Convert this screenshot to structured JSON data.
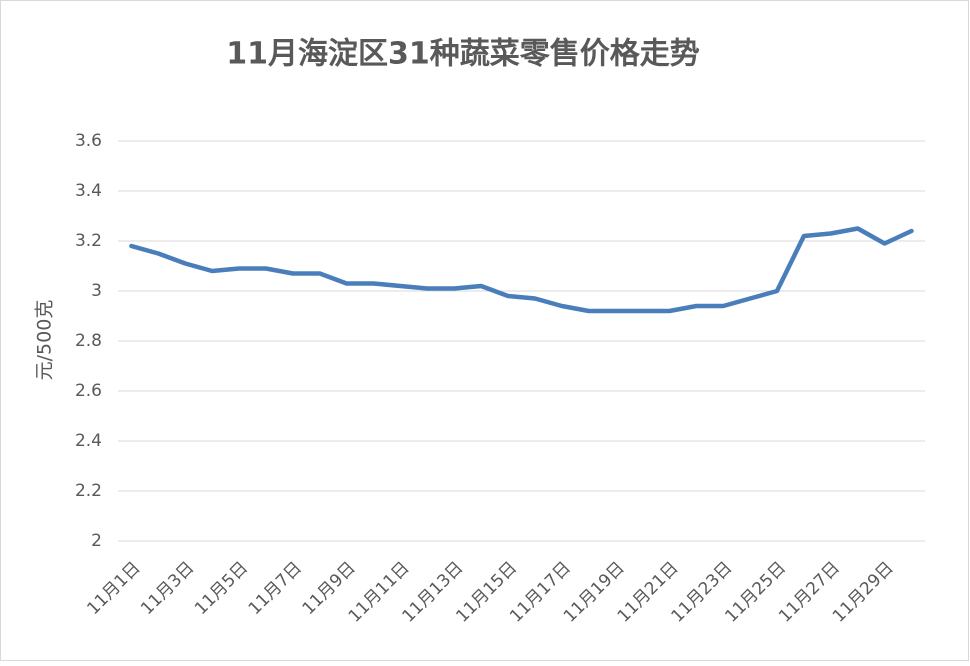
{
  "chart_data": {
    "type": "line",
    "title": "11月海淀区31种蔬菜零售价格走势",
    "y_label": "元/500克",
    "categories": [
      "11月1日",
      null,
      "11月3日",
      null,
      "11月5日",
      null,
      "11月7日",
      null,
      "11月9日",
      null,
      "11月11日",
      null,
      "11月13日",
      null,
      "11月15日",
      null,
      "11月17日",
      null,
      "11月19日",
      null,
      "11月21日",
      null,
      "11月23日",
      null,
      "11月25日",
      null,
      "11月27日",
      null,
      "11月29日",
      null
    ],
    "values": [
      3.18,
      3.15,
      3.11,
      3.08,
      3.09,
      3.09,
      3.07,
      3.07,
      3.03,
      3.03,
      3.02,
      3.01,
      3.01,
      3.02,
      2.98,
      2.97,
      2.94,
      2.92,
      2.92,
      2.92,
      2.92,
      2.94,
      2.94,
      2.97,
      3.0,
      3.22,
      3.23,
      3.25,
      3.19,
      3.24
    ],
    "color": "#4a7ebb",
    "ylim": [
      2,
      3.6
    ],
    "yticks": [
      2,
      2.2,
      2.4,
      2.6,
      2.8,
      3,
      3.2,
      3.4,
      3.6
    ],
    "grid": true
  }
}
